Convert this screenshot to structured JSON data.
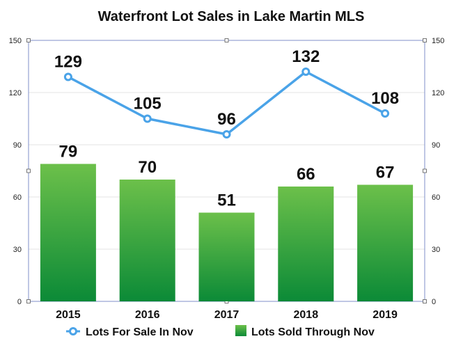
{
  "chart_data": {
    "type": "bar",
    "title": "Waterfront Lot Sales in Lake Martin MLS",
    "categories": [
      "2015",
      "2016",
      "2017",
      "2018",
      "2019"
    ],
    "series": [
      {
        "name": "Lots Sold Through Nov",
        "kind": "bar",
        "values": [
          79,
          70,
          51,
          66,
          67
        ]
      },
      {
        "name": "Lots For Sale In Nov",
        "kind": "line",
        "values": [
          129,
          105,
          96,
          132,
          108
        ]
      }
    ],
    "ylim": [
      0,
      150
    ],
    "y_ticks": [
      "0",
      "30",
      "60",
      "90",
      "120",
      "150"
    ],
    "y_ticks_right": [
      "0",
      "30",
      "60",
      "90",
      "120",
      "150"
    ],
    "xlabel": "",
    "ylabel": "",
    "grid": true,
    "legend_position": "bottom",
    "colors": {
      "bar_top": "#6cc04a",
      "bar_bottom": "#0b8a37",
      "line": "#4aa3e8",
      "axis": "#7f8fc9",
      "grid": "#e3e3e3"
    }
  }
}
